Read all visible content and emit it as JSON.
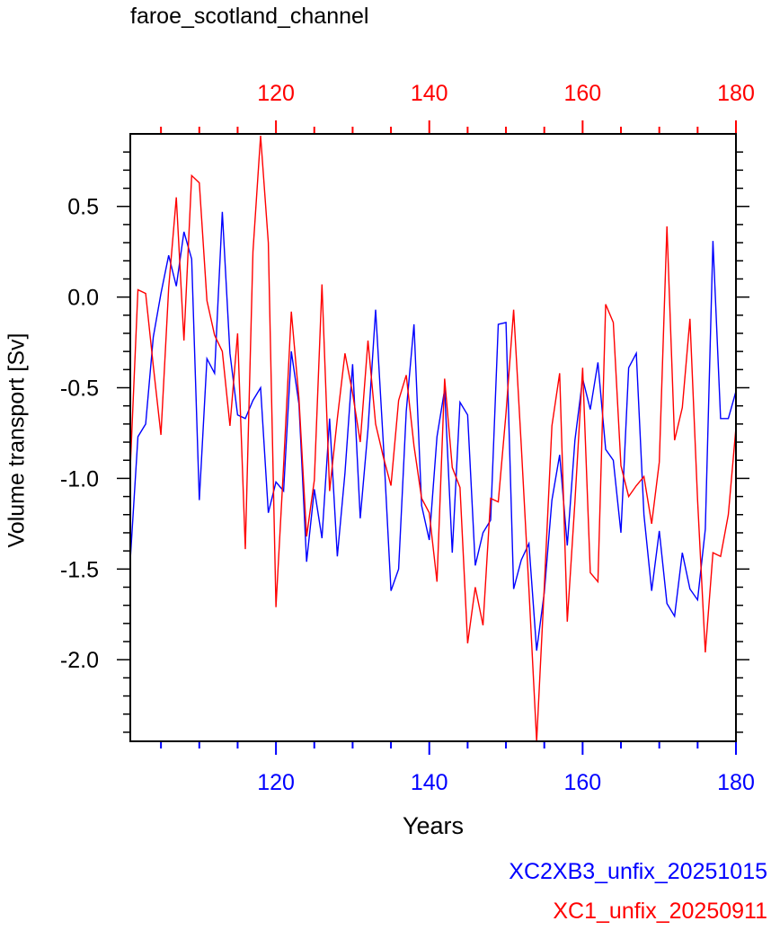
{
  "chart_data": {
    "type": "line",
    "title": "faroe_scotland_channel",
    "xlabel": "Years",
    "ylabel": "Volume transport [Sv]",
    "bottom_axis": {
      "range": [
        101,
        180
      ],
      "ticks": [
        "120",
        "140",
        "160",
        "180"
      ],
      "color": "#0000ff"
    },
    "top_axis": {
      "range": [
        101,
        180
      ],
      "ticks": [
        "120",
        "140",
        "160",
        "180"
      ],
      "color": "#ff0000"
    },
    "y_axis": {
      "range": [
        -2.45,
        0.9
      ],
      "ticks": [
        "0.5",
        "0.0",
        "-0.5",
        "-1.0",
        "-1.5",
        "-2.0"
      ],
      "tick_values": [
        0.5,
        0.0,
        -0.5,
        -1.0,
        -1.5,
        -2.0
      ]
    },
    "grid": false,
    "legend_position": "bottom-right",
    "series": [
      {
        "name": "XC2XB3_unfix_20251015",
        "color": "#0000ff",
        "x_start": 101,
        "values": [
          -1.45,
          -0.77,
          -0.7,
          -0.22,
          0.02,
          0.23,
          0.06,
          0.36,
          0.21,
          -1.12,
          -0.34,
          -0.42,
          0.47,
          -0.31,
          -0.65,
          -0.67,
          -0.57,
          -0.5,
          -1.19,
          -1.02,
          -1.07,
          -0.3,
          -0.59,
          -1.46,
          -1.06,
          -1.33,
          -0.67,
          -1.43,
          -0.97,
          -0.37,
          -1.22,
          -0.73,
          -0.07,
          -0.8,
          -1.62,
          -1.5,
          -0.63,
          -0.15,
          -1.15,
          -1.34,
          -0.77,
          -0.51,
          -1.41,
          -0.58,
          -0.65,
          -1.48,
          -1.3,
          -1.23,
          -0.15,
          -0.14,
          -1.61,
          -1.45,
          -1.36,
          -1.95,
          -1.63,
          -1.12,
          -0.87,
          -1.37,
          -0.79,
          -0.45,
          -0.62,
          -0.36,
          -0.84,
          -0.9,
          -1.3,
          -0.39,
          -0.31,
          -1.2,
          -1.62,
          -1.29,
          -1.69,
          -1.76,
          -1.41,
          -1.61,
          -1.67,
          -1.28,
          0.31,
          -0.67,
          -0.67,
          -0.52
        ]
      },
      {
        "name": "XC1_unfix_20250911",
        "color": "#ff0000",
        "x_start": 101,
        "values": [
          -0.94,
          0.04,
          0.02,
          -0.38,
          -0.76,
          0.05,
          0.55,
          -0.24,
          0.67,
          0.63,
          -0.02,
          -0.21,
          -0.3,
          -0.71,
          -0.2,
          -1.39,
          0.25,
          0.89,
          0.3,
          -1.71,
          -0.93,
          -0.08,
          -0.56,
          -1.32,
          -1.01,
          0.07,
          -1.07,
          -0.67,
          -0.31,
          -0.53,
          -0.8,
          -0.24,
          -0.7,
          -0.88,
          -1.04,
          -0.57,
          -0.43,
          -0.82,
          -1.11,
          -1.19,
          -1.57,
          -0.45,
          -0.94,
          -1.05,
          -1.91,
          -1.6,
          -1.81,
          -1.11,
          -1.13,
          -0.64,
          -0.07,
          -0.82,
          -1.61,
          -2.45,
          -1.6,
          -0.71,
          -0.42,
          -1.79,
          -1.13,
          -0.39,
          -1.52,
          -1.57,
          -0.04,
          -0.14,
          -0.93,
          -1.1,
          -1.04,
          -0.99,
          -1.25,
          -0.91,
          0.39,
          -0.79,
          -0.61,
          -0.12,
          -1.12,
          -1.96,
          -1.41,
          -1.43,
          -1.2,
          -0.72
        ]
      }
    ]
  }
}
